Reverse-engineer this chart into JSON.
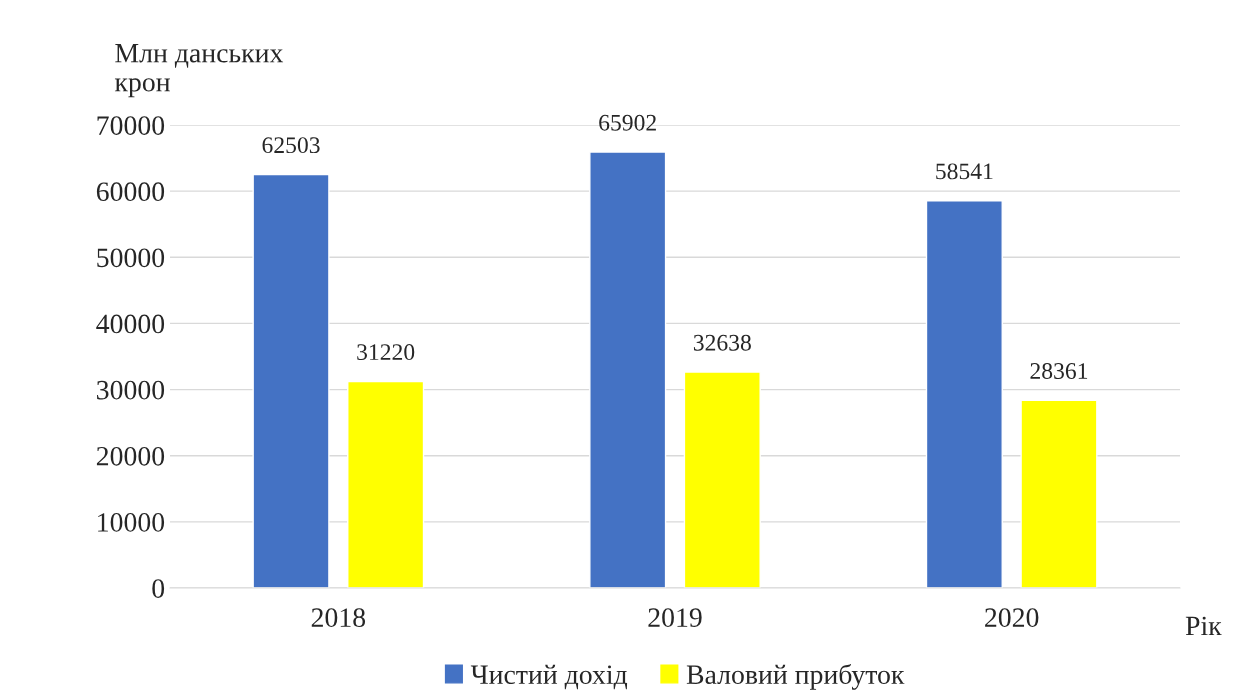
{
  "chart_data": {
    "type": "bar",
    "ylabel": "Млн данських крон",
    "xlabel": "Рік",
    "categories": [
      "2018",
      "2019",
      "2020"
    ],
    "series": [
      {
        "name": "Чистий дохід",
        "color": "#4472c4",
        "values": [
          62503,
          65902,
          58541
        ]
      },
      {
        "name": "Валовий прибуток",
        "color": "#ffff00",
        "values": [
          31220,
          32638,
          28361
        ]
      }
    ],
    "ylim": [
      0,
      70000
    ],
    "yticks": [
      0,
      10000,
      20000,
      30000,
      40000,
      50000,
      60000,
      70000
    ],
    "grid": "y",
    "legend": "bottom",
    "data_labels": true
  }
}
